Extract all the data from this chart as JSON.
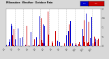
{
  "title": "Milwaukee  Weather  Outdoor Rain",
  "legend_label_current": "Current",
  "legend_label_previous": "Previous Year",
  "color_current": "#cc0000",
  "color_previous": "#0000cc",
  "bg_color": "#d8d8d8",
  "plot_bg": "#ffffff",
  "n_days": 365,
  "seed": 12345,
  "ylim_max": 2.0,
  "grid_color": "#aaaaaa",
  "n_grid_lines": 11,
  "bar_alpha": 1.0,
  "rain_probability": 0.3,
  "rain_scale": 0.25
}
